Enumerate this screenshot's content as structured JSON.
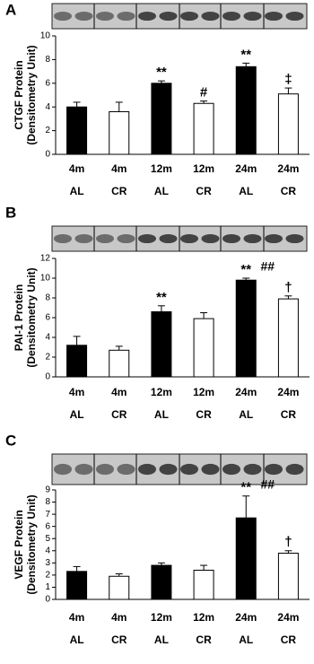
{
  "chart_data": [
    {
      "type": "bar",
      "panel": "A",
      "ylabel": [
        "CTGF Protein",
        "(Densitometry Unit)"
      ],
      "categories": [
        "4m",
        "4m",
        "12m",
        "12m",
        "24m",
        "24m"
      ],
      "subcategories": [
        "AL",
        "CR",
        "AL",
        "CR",
        "AL",
        "CR"
      ],
      "values": [
        4.0,
        3.6,
        6.0,
        4.3,
        7.4,
        5.1
      ],
      "errors": [
        0.4,
        0.8,
        0.2,
        0.2,
        0.3,
        0.5
      ],
      "bar_colors": [
        "#000000",
        "#ffffff",
        "#000000",
        "#ffffff",
        "#000000",
        "#ffffff"
      ],
      "annotations": [
        null,
        null,
        "**",
        "#",
        "**",
        "‡"
      ],
      "secondary_annotations": [
        null,
        null,
        null,
        null,
        null,
        null
      ],
      "ylim": [
        0,
        10
      ],
      "yticks": [
        0,
        2,
        4,
        6,
        8,
        10
      ]
    },
    {
      "type": "bar",
      "panel": "B",
      "ylabel": [
        "PAI-1 Protein",
        "(Densitometry Unit)"
      ],
      "categories": [
        "4m",
        "4m",
        "12m",
        "12m",
        "24m",
        "24m"
      ],
      "subcategories": [
        "AL",
        "CR",
        "AL",
        "CR",
        "AL",
        "CR"
      ],
      "values": [
        3.2,
        2.7,
        6.6,
        5.9,
        9.8,
        7.9
      ],
      "errors": [
        0.9,
        0.4,
        0.6,
        0.6,
        0.2,
        0.3
      ],
      "bar_colors": [
        "#000000",
        "#ffffff",
        "#000000",
        "#ffffff",
        "#000000",
        "#ffffff"
      ],
      "annotations": [
        null,
        null,
        "**",
        null,
        "**",
        "†"
      ],
      "secondary_annotations": [
        null,
        null,
        null,
        null,
        "##",
        null
      ],
      "ylim": [
        0,
        12
      ],
      "yticks": [
        0,
        2,
        4,
        6,
        8,
        10,
        12
      ]
    },
    {
      "type": "bar",
      "panel": "C",
      "ylabel": [
        "VEGF Protein",
        "(Densitometry Unit)"
      ],
      "categories": [
        "4m",
        "4m",
        "12m",
        "12m",
        "24m",
        "24m"
      ],
      "subcategories": [
        "AL",
        "CR",
        "AL",
        "CR",
        "AL",
        "CR"
      ],
      "values": [
        2.3,
        1.9,
        2.8,
        2.4,
        6.7,
        3.8
      ],
      "errors": [
        0.4,
        0.2,
        0.2,
        0.4,
        1.8,
        0.2
      ],
      "bar_colors": [
        "#000000",
        "#ffffff",
        "#000000",
        "#ffffff",
        "#000000",
        "#ffffff"
      ],
      "annotations": [
        null,
        null,
        null,
        null,
        "**",
        "†"
      ],
      "secondary_annotations": [
        null,
        null,
        null,
        null,
        "##",
        null
      ],
      "ylim": [
        0,
        9
      ],
      "yticks": [
        0,
        1,
        2,
        3,
        4,
        5,
        6,
        7,
        8,
        9
      ]
    }
  ]
}
